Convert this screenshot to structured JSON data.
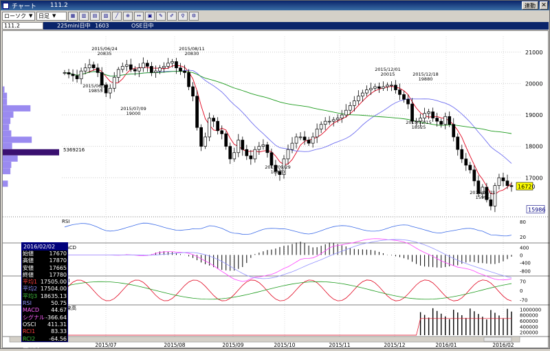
{
  "window": {
    "title": "チャート",
    "symbol": "111.2",
    "link_button": "連動",
    "close_glyph": "✕"
  },
  "toolbar": {
    "candle_dropdown": "ローソク",
    "period_dropdown": "日足",
    "icons": [
      "chart-type-icon",
      "bar-icon",
      "volume-icon",
      "indicator-icon",
      "trendline-icon",
      "zoom-icon",
      "scroll-icon",
      "print-icon",
      "pen-icon",
      "erase-icon",
      "search-icon",
      "settings-icon"
    ]
  },
  "infobar": {
    "code": "111.2",
    "name": "225mini日中",
    "number": "1603",
    "exchange": "OSE日中"
  },
  "colors": {
    "candle_up": "#ffffff",
    "candle_down": "#000000",
    "ma_short": "#e0001b",
    "ma_mid": "#6e6ef0",
    "ma_long": "#1a9a1a",
    "volume_profile": "#9a8af0",
    "volume_profile_highlight": "#3a1070",
    "last_price_bg": "#ffff00",
    "rsi": "#3a6ae8",
    "rci_red": "#e0001b",
    "rci_green": "#1a9a1a"
  },
  "chart_data": {
    "type": "candlestick",
    "price_ticks": [
      "21000",
      "20000",
      "19000",
      "18000",
      "17000"
    ],
    "price_range": [
      15800,
      21500
    ],
    "last_price": "16720",
    "low_marker": "15986",
    "profile_max_label": "5369216",
    "x_labels": [
      "2015/07",
      "2015/08",
      "2015/09",
      "2015/10",
      "2015/11",
      "2015/12",
      "2016/01",
      "2016/02"
    ],
    "annotations": [
      {
        "date": "2015/06/24",
        "value": "20835"
      },
      {
        "date": "2015/06/18",
        "value": "19855"
      },
      {
        "date": "2015/07/09",
        "value": "19000"
      },
      {
        "date": "2015/08/11",
        "value": "20830"
      },
      {
        "date": "2015/09/29",
        "value": "16870"
      },
      {
        "date": "2015/12/01",
        "value": "20015"
      },
      {
        "date": "2015/12/18",
        "value": "19880"
      },
      {
        "date": "2015/12/15",
        "value": "18525"
      },
      {
        "date": "2016/01/21",
        "value": "15995"
      }
    ],
    "close_approx": [
      20350,
      20300,
      20250,
      20150,
      20400,
      20500,
      20600,
      20500,
      20350,
      19950,
      19700,
      19850,
      20200,
      20450,
      20550,
      20600,
      20450,
      20400,
      20500,
      20650,
      20550,
      20350,
      20400,
      20500,
      20550,
      20650,
      20700,
      20500,
      20400,
      20350,
      19900,
      19600,
      18600,
      18000,
      18300,
      18900,
      18800,
      18500,
      18400,
      18000,
      17600,
      17800,
      18200,
      17900,
      17700,
      17600,
      17900,
      18000,
      18050,
      17800,
      17400,
      17200,
      17100,
      17600,
      17900,
      18100,
      18300,
      18300,
      18200,
      18100,
      18300,
      18550,
      18700,
      18800,
      18800,
      18850,
      18900,
      19000,
      19150,
      19300,
      19450,
      19600,
      19700,
      19800,
      19850,
      19900,
      19850,
      19900,
      19950,
      19950,
      19800,
      19650,
      19500,
      19350,
      18800,
      18800,
      18900,
      19050,
      19100,
      18900,
      18800,
      18700,
      18950,
      18700,
      18300,
      17900,
      17600,
      17400,
      17250,
      16900,
      16500,
      16700,
      16300,
      16100,
      16750,
      17000,
      16900,
      16750,
      16720
    ],
    "volume_profile": [
      {
        "level": 19800,
        "size": 0.04
      },
      {
        "level": 19600,
        "size": 0.1
      },
      {
        "level": 19400,
        "size": 0.1
      },
      {
        "level": 19200,
        "size": 0.65
      },
      {
        "level": 19000,
        "size": 0.25
      },
      {
        "level": 18800,
        "size": 0.18
      },
      {
        "level": 18600,
        "size": 0.15
      },
      {
        "level": 18400,
        "size": 0.2
      },
      {
        "level": 18200,
        "size": 0.68
      },
      {
        "level": 18000,
        "size": 0.22
      },
      {
        "level": 17800,
        "size": 1.0
      },
      {
        "level": 17600,
        "size": 0.35
      },
      {
        "level": 17400,
        "size": 0.2
      },
      {
        "level": 17200,
        "size": 0.18
      },
      {
        "level": 16800,
        "size": 0.12
      }
    ]
  },
  "panels": {
    "rsi": {
      "label": "RSI",
      "ticks": [
        "80",
        "20"
      ]
    },
    "macd": {
      "label": "MACD",
      "ticks": [
        "400",
        "0",
        "-400",
        "-800"
      ]
    },
    "rci": {
      "label": "RCI",
      "ticks": [
        "70",
        "0",
        "-70"
      ]
    },
    "volume": {
      "label": "出来高",
      "ticks": [
        "1000000",
        "800000",
        "600000",
        "400000",
        "200000"
      ]
    }
  },
  "datapanel": {
    "date": "2016/02/02",
    "rows": [
      {
        "k": "始値",
        "v": "17670"
      },
      {
        "k": "高値",
        "v": "17870"
      },
      {
        "k": "安値",
        "v": "17665"
      },
      {
        "k": "終値",
        "v": "17780"
      },
      {
        "k": "平均1",
        "v": "17505.00"
      },
      {
        "k": "平均2",
        "v": "17504.00"
      },
      {
        "k": "平均3",
        "v": "18635.13"
      },
      {
        "k": "RSI",
        "v": "50.75"
      },
      {
        "k": "MACD",
        "v": "44.67"
      },
      {
        "k": "シグナル",
        "v": "-366.64"
      },
      {
        "k": "OSCI",
        "v": "411.31"
      },
      {
        "k": "RCI1",
        "v": "83.33"
      },
      {
        "k": "RCI2",
        "v": "-64.56"
      },
      {
        "k": "出来高",
        "v": "406115"
      }
    ],
    "row_colors": [
      "#fff",
      "#fff",
      "#fff",
      "#fff",
      "#ff4040",
      "#9090ff",
      "#40c040",
      "#9090ff",
      "#ff60ff",
      "#ff60ff",
      "#fff",
      "#ff4040",
      "#40c040",
      "#fff"
    ]
  }
}
